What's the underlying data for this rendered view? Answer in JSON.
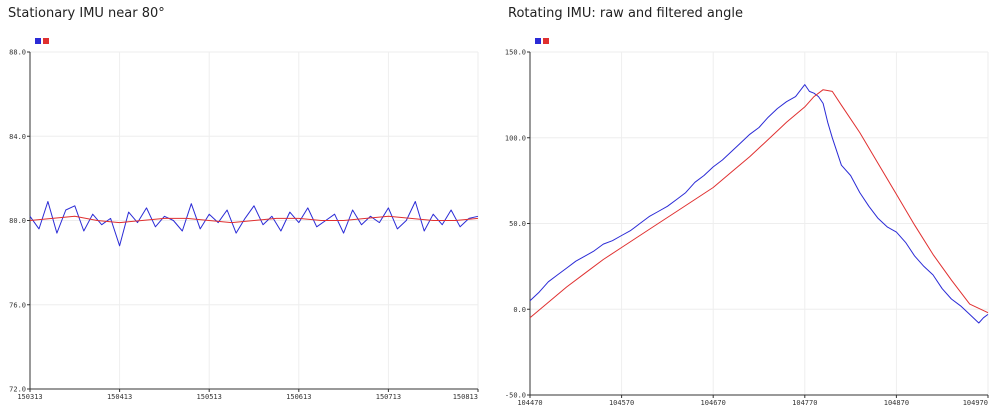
{
  "chart_data": [
    {
      "type": "line",
      "title": "Stationary IMU near 80°",
      "xlabel": "",
      "ylabel": "",
      "xlim": [
        150313,
        150813
      ],
      "ylim": [
        72.0,
        88.0
      ],
      "xticks": [
        "150313",
        "150413",
        "150513",
        "150613",
        "150713",
        "150813"
      ],
      "yticks": [
        "72.0",
        "76.0",
        "80.0",
        "84.0",
        "88.0"
      ],
      "grid": true,
      "legend": "top-left",
      "series": [
        {
          "color": "#2b2bd6",
          "x": [
            150313,
            150323,
            150333,
            150343,
            150353,
            150363,
            150373,
            150383,
            150393,
            150403,
            150413,
            150423,
            150433,
            150443,
            150453,
            150463,
            150473,
            150483,
            150493,
            150503,
            150513,
            150523,
            150533,
            150543,
            150553,
            150563,
            150573,
            150583,
            150593,
            150603,
            150613,
            150623,
            150633,
            150643,
            150653,
            150663,
            150673,
            150683,
            150693,
            150703,
            150713,
            150723,
            150733,
            150743,
            150753,
            150763,
            150773,
            150783,
            150793,
            150803,
            150813
          ],
          "values": [
            80.2,
            79.6,
            80.9,
            79.4,
            80.5,
            80.7,
            79.5,
            80.3,
            79.8,
            80.1,
            78.8,
            80.4,
            79.9,
            80.6,
            79.7,
            80.2,
            80.0,
            79.5,
            80.8,
            79.6,
            80.3,
            79.9,
            80.5,
            79.4,
            80.1,
            80.7,
            79.8,
            80.2,
            79.5,
            80.4,
            79.9,
            80.6,
            79.7,
            80.0,
            80.3,
            79.4,
            80.5,
            79.8,
            80.2,
            79.9,
            80.6,
            79.6,
            80.0,
            80.9,
            79.5,
            80.3,
            79.8,
            80.5,
            79.7,
            80.1,
            80.2
          ]
        },
        {
          "color": "#e03030",
          "x": [
            150313,
            150338,
            150363,
            150388,
            150413,
            150438,
            150463,
            150488,
            150513,
            150538,
            150563,
            150588,
            150613,
            150638,
            150663,
            150688,
            150713,
            150738,
            150763,
            150788,
            150813
          ],
          "values": [
            80.0,
            80.1,
            80.2,
            80.0,
            79.9,
            80.0,
            80.1,
            80.1,
            80.0,
            79.9,
            80.0,
            80.1,
            80.1,
            80.0,
            80.0,
            80.1,
            80.2,
            80.1,
            80.0,
            80.0,
            80.1
          ]
        }
      ]
    },
    {
      "type": "line",
      "title": "Rotating IMU: raw and filtered angle",
      "xlabel": "",
      "ylabel": "",
      "xlim": [
        104470,
        104970
      ],
      "ylim": [
        -50.0,
        150.0
      ],
      "xticks": [
        "104470",
        "104570",
        "104670",
        "104770",
        "104870",
        "104970"
      ],
      "yticks": [
        "-50.0",
        "0.0",
        "50.0",
        "100.0",
        "150.0"
      ],
      "grid": true,
      "legend": "top-left",
      "series": [
        {
          "color": "#2b2bd6",
          "x": [
            104470,
            104480,
            104490,
            104500,
            104510,
            104520,
            104530,
            104540,
            104550,
            104560,
            104570,
            104580,
            104590,
            104600,
            104610,
            104620,
            104630,
            104640,
            104650,
            104660,
            104670,
            104680,
            104690,
            104700,
            104710,
            104720,
            104730,
            104740,
            104750,
            104760,
            104770,
            104775,
            104780,
            104785,
            104790,
            104795,
            104800,
            104810,
            104820,
            104830,
            104840,
            104850,
            104860,
            104870,
            104880,
            104890,
            104900,
            104910,
            104920,
            104930,
            104940,
            104950,
            104960,
            104965,
            104970
          ],
          "values": [
            5,
            10,
            16,
            20,
            24,
            28,
            31,
            34,
            38,
            40,
            43,
            46,
            50,
            54,
            57,
            60,
            64,
            68,
            74,
            78,
            83,
            87,
            92,
            97,
            102,
            106,
            112,
            117,
            121,
            124,
            131,
            127,
            126,
            124,
            120,
            109,
            100,
            84,
            78,
            68,
            60,
            53,
            48,
            45,
            39,
            31,
            25,
            20,
            12,
            6,
            2,
            -3,
            -8,
            -5,
            -3
          ]
        },
        {
          "color": "#e03030",
          "x": [
            104470,
            104490,
            104510,
            104530,
            104550,
            104570,
            104590,
            104610,
            104630,
            104650,
            104670,
            104690,
            104710,
            104730,
            104750,
            104770,
            104780,
            104790,
            104800,
            104810,
            104830,
            104850,
            104870,
            104890,
            104910,
            104930,
            104950,
            104970
          ],
          "values": [
            -5,
            4,
            13,
            21,
            29,
            36,
            43,
            50,
            57,
            64,
            71,
            80,
            89,
            99,
            109,
            118,
            124,
            128,
            127,
            119,
            103,
            85,
            67,
            49,
            32,
            17,
            3,
            -2
          ]
        }
      ]
    }
  ]
}
